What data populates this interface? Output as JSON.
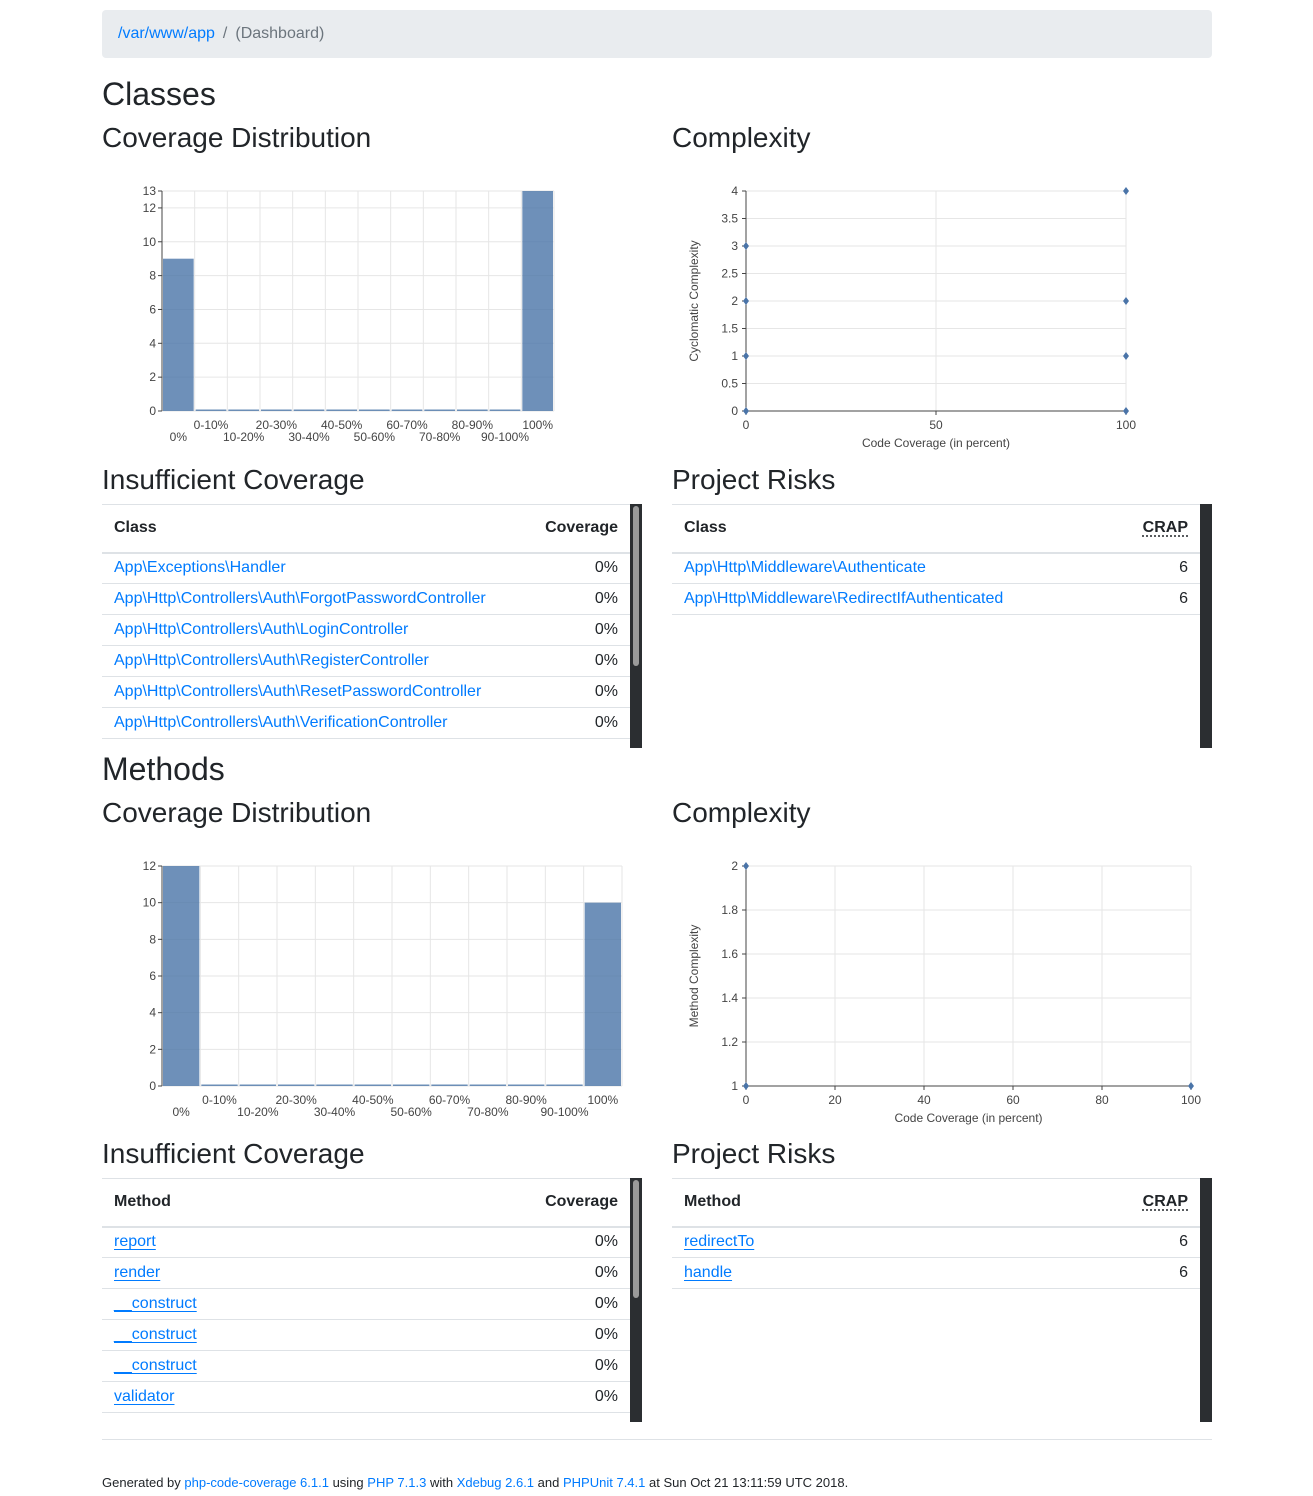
{
  "breadcrumb": {
    "root": "/var/www/app",
    "separator": "/",
    "current": "(Dashboard)"
  },
  "classes": {
    "heading": "Classes",
    "coverage_heading": "Coverage Distribution",
    "complexity_heading": "Complexity",
    "insufficient_heading": "Insufficient Coverage",
    "risks_heading": "Project Risks",
    "insufficient": {
      "col_name": "Class",
      "col_value": "Coverage",
      "rows": [
        {
          "name": "App\\Exceptions\\Handler",
          "value": "0%"
        },
        {
          "name": "App\\Http\\Controllers\\Auth\\ForgotPasswordController",
          "value": "0%"
        },
        {
          "name": "App\\Http\\Controllers\\Auth\\LoginController",
          "value": "0%"
        },
        {
          "name": "App\\Http\\Controllers\\Auth\\RegisterController",
          "value": "0%"
        },
        {
          "name": "App\\Http\\Controllers\\Auth\\ResetPasswordController",
          "value": "0%"
        },
        {
          "name": "App\\Http\\Controllers\\Auth\\VerificationController",
          "value": "0%"
        }
      ]
    },
    "risks": {
      "col_name": "Class",
      "col_value": "CRAP",
      "rows": [
        {
          "name": "App\\Http\\Middleware\\Authenticate",
          "value": "6"
        },
        {
          "name": "App\\Http\\Middleware\\RedirectIfAuthenticated",
          "value": "6"
        }
      ]
    }
  },
  "methods": {
    "heading": "Methods",
    "coverage_heading": "Coverage Distribution",
    "complexity_heading": "Complexity",
    "insufficient_heading": "Insufficient Coverage",
    "risks_heading": "Project Risks",
    "insufficient": {
      "col_name": "Method",
      "col_value": "Coverage",
      "rows": [
        {
          "name": "report",
          "value": "0%"
        },
        {
          "name": "render",
          "value": "0%"
        },
        {
          "name": "__construct",
          "value": "0%"
        },
        {
          "name": "__construct",
          "value": "0%"
        },
        {
          "name": "__construct",
          "value": "0%"
        },
        {
          "name": "validator",
          "value": "0%"
        }
      ]
    },
    "risks": {
      "col_name": "Method",
      "col_value": "CRAP",
      "rows": [
        {
          "name": "redirectTo",
          "value": "6"
        },
        {
          "name": "handle",
          "value": "6"
        }
      ]
    }
  },
  "chart_data": [
    {
      "id": "classes-coverage",
      "type": "bar",
      "categories": [
        "0%",
        "0-10%",
        "10-20%",
        "20-30%",
        "30-40%",
        "40-50%",
        "50-60%",
        "60-70%",
        "70-80%",
        "80-90%",
        "90-100%",
        "100%"
      ],
      "values": [
        9,
        0,
        0,
        0,
        0,
        0,
        0,
        0,
        0,
        0,
        0,
        13
      ],
      "ylim": [
        0,
        13
      ],
      "yticks": [
        0,
        2,
        4,
        6,
        8,
        10,
        12,
        13
      ],
      "color": "#4a74a8",
      "grid": true
    },
    {
      "id": "classes-complexity",
      "type": "scatter",
      "xlabel": "Code Coverage (in percent)",
      "ylabel": "Cyclomatic Complexity",
      "xlim": [
        0,
        100
      ],
      "ylim": [
        0,
        4
      ],
      "xticks": [
        0,
        50,
        100
      ],
      "yticks": [
        0,
        0.5,
        1,
        1.5,
        2,
        2.5,
        3,
        3.5,
        4
      ],
      "points": [
        [
          0,
          3
        ],
        [
          0,
          2
        ],
        [
          0,
          1
        ],
        [
          0,
          0
        ],
        [
          100,
          4
        ],
        [
          100,
          2
        ],
        [
          100,
          1
        ],
        [
          100,
          0
        ]
      ],
      "color": "#4a74a8",
      "grid": true
    },
    {
      "id": "methods-coverage",
      "type": "bar",
      "categories": [
        "0%",
        "0-10%",
        "10-20%",
        "20-30%",
        "30-40%",
        "40-50%",
        "50-60%",
        "60-70%",
        "70-80%",
        "80-90%",
        "90-100%",
        "100%"
      ],
      "values": [
        12,
        0,
        0,
        0,
        0,
        0,
        0,
        0,
        0,
        0,
        0,
        10
      ],
      "ylim": [
        0,
        12
      ],
      "yticks": [
        0,
        2,
        4,
        6,
        8,
        10,
        12
      ],
      "color": "#4a74a8",
      "grid": true
    },
    {
      "id": "methods-complexity",
      "type": "scatter",
      "xlabel": "Code Coverage (in percent)",
      "ylabel": "Method Complexity",
      "xlim": [
        0,
        100
      ],
      "ylim": [
        1,
        2
      ],
      "xticks": [
        0,
        20,
        40,
        60,
        80,
        100
      ],
      "yticks": [
        1,
        1.2,
        1.4,
        1.6,
        1.8,
        2
      ],
      "points": [
        [
          0,
          2
        ],
        [
          0,
          1
        ],
        [
          100,
          1
        ]
      ],
      "color": "#4a74a8",
      "grid": true
    }
  ],
  "footer": {
    "prefix": "Generated by",
    "tool": "php-code-coverage 6.1.1",
    "using": "using",
    "php": "PHP 7.1.3",
    "with": "with",
    "xdebug": "Xdebug 2.6.1",
    "and": "and",
    "phpunit": "PHPUnit 7.4.1",
    "suffix": "at Sun Oct 21 13:11:59 UTC 2018."
  }
}
